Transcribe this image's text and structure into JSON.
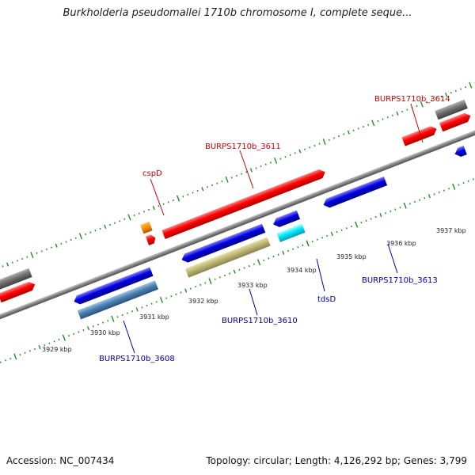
{
  "title": "Burkholderia pseudomallei 1710b chromosome I, complete seque...",
  "accession": "Accession: NC_007434",
  "summary": "Topology: circular; Length: 4,126,292 bp; Genes: 3,799",
  "colors": {
    "forward": "#ff0000",
    "reverse": "#0000e6",
    "backbone": "#808080",
    "ticks": "#228b22",
    "forward_label": "#cc0000",
    "reverse_label": "#0000aa"
  },
  "ticks": [
    "3929 kbp",
    "3930 kbp",
    "3931 kbp",
    "3932 kbp",
    "3933 kbp",
    "3934 kbp",
    "3935 kbp",
    "3936 kbp",
    "3937 kbp"
  ],
  "gene_labels": {
    "cspD": "cspD",
    "g3611": "BURPS1710b_3611",
    "g3614": "BURPS1710b_3614",
    "g3608": "BURPS1710b_3608",
    "g3610": "BURPS1710b_3610",
    "tdsD": "tdsD",
    "g3613": "BURPS1710b_3613"
  }
}
